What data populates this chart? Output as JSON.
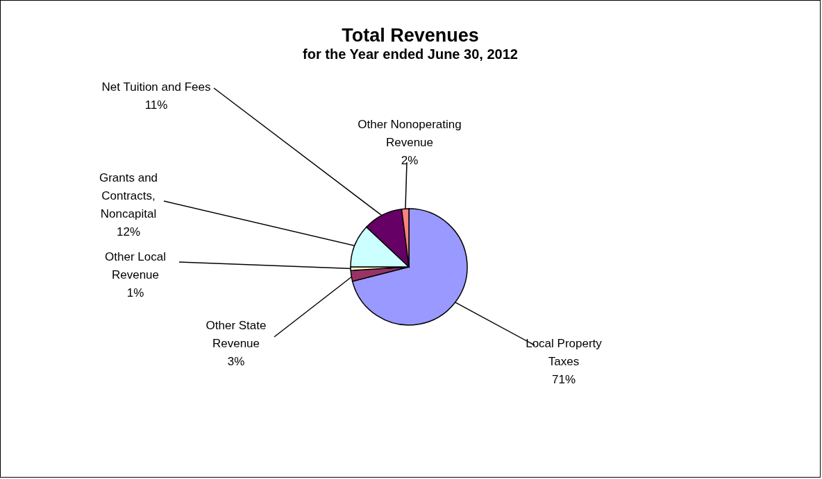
{
  "chart_data": {
    "type": "pie",
    "title": "Total Revenues",
    "subtitle": "for the Year ended June 30, 2012",
    "categories": [
      "Local Property\nTaxes",
      "Other State\nRevenue",
      "Other Local\nRevenue",
      "Grants and\nContracts,\nNoncapital",
      "Net Tuition and Fees",
      "Other Nonoperating\nRevenue"
    ],
    "values": [
      71,
      3,
      1,
      12,
      11,
      2
    ],
    "value_labels": [
      "71%",
      "3%",
      "1%",
      "12%",
      "11%",
      "2%"
    ],
    "colors": [
      "#9999ff",
      "#993366",
      "#ffffcc",
      "#ccffff",
      "#660066",
      "#ff8080"
    ],
    "legend": false
  }
}
